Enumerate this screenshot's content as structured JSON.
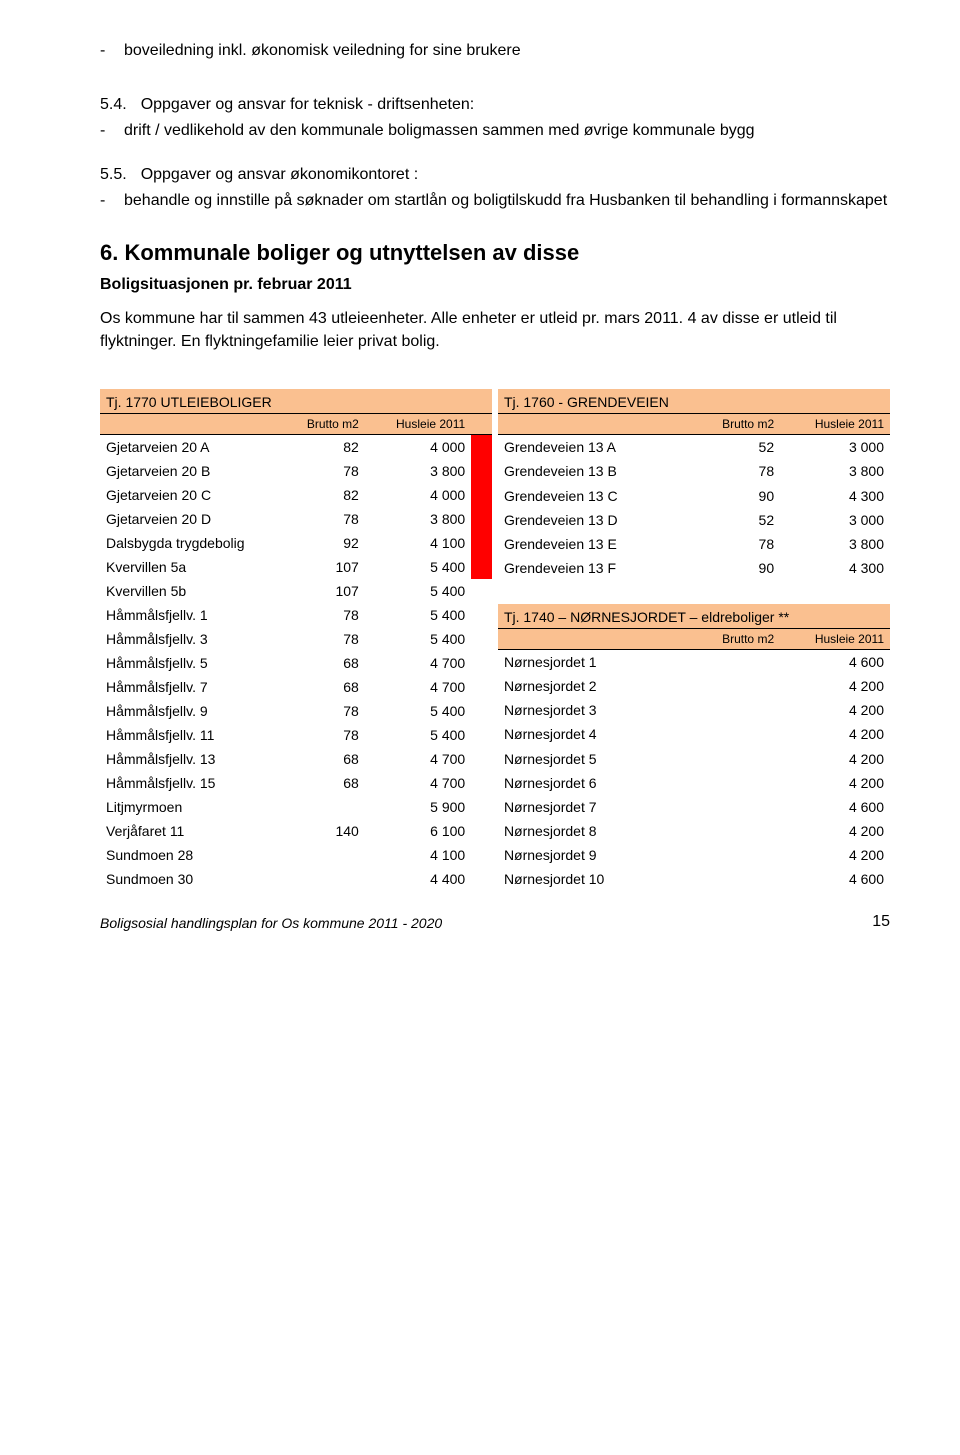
{
  "intro_bullet": {
    "dash": "-",
    "text": "boveiledning inkl. økonomisk veiledning for sine brukere"
  },
  "section_5_4": {
    "num": "5.4.",
    "title": "Oppgaver og ansvar for teknisk - driftsenheten:",
    "bullet_dash": "-",
    "bullet_text": "drift / vedlikehold av den kommunale boligmassen sammen med øvrige kommunale bygg"
  },
  "section_5_5": {
    "num": "5.5.",
    "title": "Oppgaver og ansvar økonomikontoret :",
    "bullet_dash": "-",
    "bullet_text": "behandle og innstille på søknader om startlån og boligtilskudd fra Husbanken til behandling i formannskapet"
  },
  "section_6": {
    "num": "6.",
    "title": "Kommunale boliger og utnyttelsen av disse"
  },
  "subhead": "Boligsituasjonen pr. februar  2011",
  "para": "Os kommune har til sammen 43 utleieenheter. Alle enheter er utleid pr. mars 2011. 4 av disse er utleid til flyktninger. En  flyktningefamilie leier privat bolig.",
  "left_table": {
    "header": "Tj. 1770 UTLEIEBOLIGER",
    "col_brutto": "Brutto m2",
    "col_rent": "Husleie 2011",
    "rows": [
      {
        "name": "Gjetarveien 20 A",
        "brutto": "82",
        "rent": "4 000",
        "red": true
      },
      {
        "name": "Gjetarveien 20 B",
        "brutto": "78",
        "rent": "3 800",
        "red": true
      },
      {
        "name": "Gjetarveien 20 C",
        "brutto": "82",
        "rent": "4 000",
        "red": true
      },
      {
        "name": "Gjetarveien 20 D",
        "brutto": "78",
        "rent": "3 800",
        "red": true
      },
      {
        "name": "Dalsbygda trygdebolig",
        "brutto": "92",
        "rent": "4 100",
        "red": true
      },
      {
        "name": "Kvervillen 5a",
        "brutto": "107",
        "rent": "5 400",
        "red": true
      },
      {
        "name": "Kvervillen 5b",
        "brutto": "107",
        "rent": "5 400",
        "red": false
      },
      {
        "name": "Håmmålsfjellv. 1",
        "brutto": "78",
        "rent": "5 400",
        "red": false
      },
      {
        "name": "Håmmålsfjellv. 3",
        "brutto": "78",
        "rent": "5 400",
        "red": false
      },
      {
        "name": "Håmmålsfjellv. 5",
        "brutto": "68",
        "rent": "4 700",
        "red": false
      },
      {
        "name": "Håmmålsfjellv. 7",
        "brutto": "68",
        "rent": "4 700",
        "red": false
      },
      {
        "name": "Håmmålsfjellv. 9",
        "brutto": "78",
        "rent": "5 400",
        "red": false
      },
      {
        "name": "Håmmålsfjellv. 11",
        "brutto": "78",
        "rent": "5 400",
        "red": false
      },
      {
        "name": "Håmmålsfjellv. 13",
        "brutto": "68",
        "rent": "4 700",
        "red": false
      },
      {
        "name": "Håmmålsfjellv. 15",
        "brutto": "68",
        "rent": "4 700",
        "red": false
      },
      {
        "name": "Litjmyrmoen",
        "brutto": "",
        "rent": "5 900",
        "red": false
      },
      {
        "name": "Verjåfaret 11",
        "brutto": "140",
        "rent": "6 100",
        "red": false
      },
      {
        "name": "Sundmoen 28",
        "brutto": "",
        "rent": "4 100",
        "red": false
      },
      {
        "name": "Sundmoen 30",
        "brutto": "",
        "rent": "4 400",
        "red": false
      }
    ]
  },
  "right_table_top": {
    "header": "Tj. 1760 - GRENDEVEIEN",
    "col_brutto": "Brutto m2",
    "col_rent": "Husleie 2011",
    "rows": [
      {
        "name": "Grendeveien 13 A",
        "brutto": "52",
        "rent": "3 000"
      },
      {
        "name": "Grendeveien 13 B",
        "brutto": "78",
        "rent": "3 800"
      },
      {
        "name": "Grendeveien 13 C",
        "brutto": "90",
        "rent": "4 300"
      },
      {
        "name": "Grendeveien 13 D",
        "brutto": "52",
        "rent": "3 000"
      },
      {
        "name": "Grendeveien 13 E",
        "brutto": "78",
        "rent": "3 800"
      },
      {
        "name": "Grendeveien 13 F",
        "brutto": "90",
        "rent": "4 300"
      }
    ]
  },
  "right_table_bottom": {
    "header": "Tj. 1740 – NØRNESJORDET – eldreboliger **",
    "col_brutto": "Brutto m2",
    "col_rent": "Husleie 2011",
    "rows": [
      {
        "name": "Nørnesjordet 1",
        "brutto": "",
        "rent": "4 600"
      },
      {
        "name": "Nørnesjordet 2",
        "brutto": "",
        "rent": "4 200"
      },
      {
        "name": "Nørnesjordet 3",
        "brutto": "",
        "rent": "4 200"
      },
      {
        "name": "Nørnesjordet 4",
        "brutto": "",
        "rent": "4 200"
      },
      {
        "name": "Nørnesjordet 5",
        "brutto": "",
        "rent": "4 200"
      },
      {
        "name": "Nørnesjordet 6",
        "brutto": "",
        "rent": "4 200"
      },
      {
        "name": "Nørnesjordet 7",
        "brutto": "",
        "rent": "4 600"
      },
      {
        "name": "Nørnesjordet 8",
        "brutto": "",
        "rent": "4 200"
      },
      {
        "name": "Nørnesjordet 9",
        "brutto": "",
        "rent": "4 200"
      },
      {
        "name": "Nørnesjordet 10",
        "brutto": "",
        "rent": "4 600"
      }
    ]
  },
  "footer": {
    "title": "Boligsosial handlingsplan for Os kommune  2011 - 2020",
    "page": "15"
  },
  "colors": {
    "header_bg": "#fac090",
    "red_fill": "#ff0000",
    "text": "#000000",
    "page_bg": "#ffffff"
  }
}
